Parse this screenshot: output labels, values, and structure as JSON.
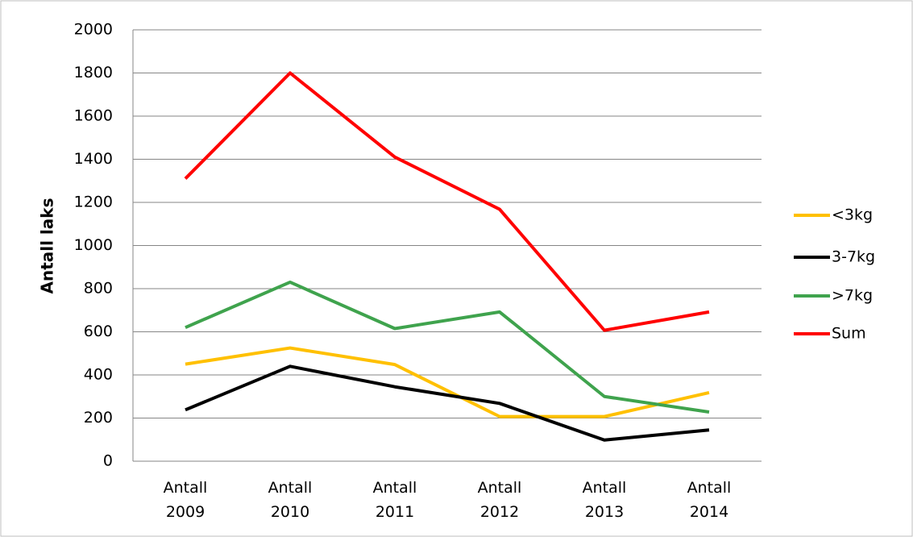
{
  "chart_data": {
    "type": "line",
    "y_label": "Antall laks",
    "categories": [
      "Antall 2009",
      "Antall 2010",
      "Antall 2011",
      "Antall 2012",
      "Antall 2013",
      "Antall 2014"
    ],
    "series": [
      {
        "name": "<3kg",
        "color": "#ffc000",
        "values": [
          450,
          525,
          448,
          207,
          207,
          318
        ]
      },
      {
        "name": "3-7kg",
        "color": "#000000",
        "values": [
          238,
          440,
          345,
          268,
          98,
          145
        ]
      },
      {
        "name": ">7kg",
        "color": "#3fa34d",
        "values": [
          620,
          830,
          615,
          692,
          300,
          228
        ]
      },
      {
        "name": "Sum",
        "color": "#ff0000",
        "values": [
          1310,
          1800,
          1410,
          1168,
          607,
          692
        ]
      }
    ],
    "ylim": [
      0,
      2000
    ],
    "yticks": [
      0,
      200,
      400,
      600,
      800,
      1000,
      1200,
      1400,
      1600,
      1800,
      2000
    ],
    "grid": true,
    "legend": "right"
  }
}
